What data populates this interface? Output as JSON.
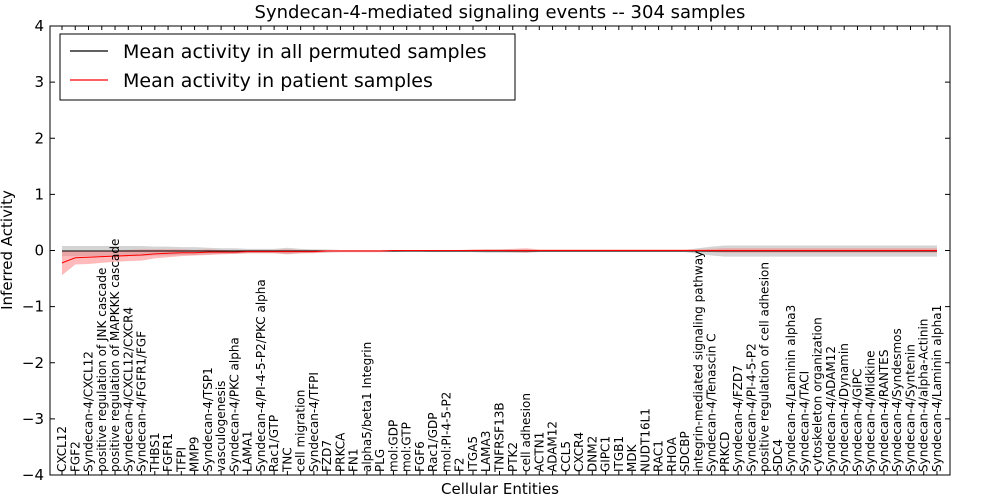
{
  "chart_data": {
    "type": "line",
    "title": "Syndecan-4-mediated signaling events -- 304 samples",
    "xlabel": "Cellular Entities",
    "ylabel": "Inferred Activity",
    "ylim": [
      -4,
      4
    ],
    "yticks": [
      -4,
      -3,
      -2,
      -1,
      0,
      1,
      2,
      3,
      4
    ],
    "ytick_labels": [
      "−4",
      "−3",
      "−2",
      "−1",
      "0",
      "1",
      "2",
      "3",
      "4"
    ],
    "legend_position": "top-left",
    "categories": [
      "CXCL12",
      "FGF2",
      "Syndecan-4/CXCL12",
      "positive regulation of JNK cascade",
      "positive regulation of MAPKKK cascade",
      "Syndecan-4/CXCL12/CXCR4",
      "Syndecan-4/FGFR1/FGF",
      "THBS1",
      "FGFR1",
      "TFPI",
      "MMP9",
      "Syndecan-4/TSP1",
      "vasculogenesis",
      "Syndecan-4/PKC alpha",
      "LAMA1",
      "Syndecan-4/PI-4-5-P2/PKC alpha",
      "Rac1/GTP",
      "TNC",
      "cell migration",
      "Syndecan-4/TFPI",
      "FZD7",
      "PRKCA",
      "FN1",
      "alpha5/beta1 Integrin",
      "PLG",
      "mol:GDP",
      "mol:GTP",
      "FGF6",
      "Rac1/GDP",
      "mol:PI-4-5-P2",
      "F2",
      "ITGA5",
      "LAMA3",
      "TNFRSF13B",
      "PTK2",
      "cell adhesion",
      "ACTN1",
      "ADAM12",
      "CCL5",
      "CXCR4",
      "DNM2",
      "GIPC1",
      "ITGB1",
      "MDK",
      "NUDT16L1",
      "RAC1",
      "RHOA",
      "SDCBP",
      "integrin-mediated signaling pathway",
      "Syndecan-4/Tenascin C",
      "PRKCD",
      "Syndecan-4/FZD7",
      "Syndecan-4/PI-4-5-P2",
      "positive regulation of cell adhesion",
      "SDC4",
      "Syndecan-4/Laminin alpha3",
      "Syndecan-4/TACI",
      "cytoskeleton organization",
      "Syndecan-4/ADAM12",
      "Syndecan-4/Dynamin",
      "Syndecan-4/GIPC",
      "Syndecan-4/Midkine",
      "Syndecan-4/RANTES",
      "Syndecan-4/Syndesmos",
      "Syndecan-4/Syntenin",
      "Syndecan-4/alpha-Actinin",
      "Syndecan-4/Laminin alpha1"
    ],
    "series": [
      {
        "name": "Mean activity in all permuted samples",
        "color": "#000000",
        "band_color": "#aaaaaa",
        "values": [
          -0.01,
          -0.01,
          -0.01,
          -0.01,
          -0.01,
          -0.01,
          -0.01,
          -0.01,
          -0.01,
          -0.01,
          -0.01,
          -0.01,
          -0.01,
          -0.01,
          -0.01,
          -0.01,
          -0.01,
          -0.01,
          -0.01,
          -0.01,
          -0.01,
          -0.01,
          -0.01,
          -0.01,
          -0.01,
          -0.01,
          -0.01,
          -0.01,
          -0.01,
          -0.01,
          -0.01,
          -0.01,
          -0.01,
          -0.01,
          -0.01,
          -0.01,
          -0.01,
          -0.01,
          -0.01,
          -0.01,
          -0.01,
          -0.01,
          -0.01,
          -0.01,
          -0.01,
          -0.01,
          -0.01,
          -0.01,
          -0.01,
          -0.01,
          -0.01,
          -0.01,
          -0.01,
          -0.01,
          -0.01,
          -0.01,
          -0.01,
          -0.01,
          -0.01,
          -0.01,
          -0.01,
          -0.01,
          -0.01,
          -0.01,
          -0.01,
          -0.01,
          -0.01
        ],
        "band_half_width": [
          0.09,
          0.09,
          0.09,
          0.09,
          0.09,
          0.09,
          0.09,
          0.08,
          0.08,
          0.07,
          0.07,
          0.06,
          0.05,
          0.05,
          0.04,
          0.04,
          0.04,
          0.06,
          0.04,
          0.03,
          0.03,
          0.02,
          0.02,
          0.02,
          0.02,
          0.02,
          0.01,
          0.01,
          0.02,
          0.02,
          0.02,
          0.02,
          0.03,
          0.03,
          0.03,
          0.03,
          0.02,
          0.02,
          0.02,
          0.02,
          0.02,
          0.02,
          0.02,
          0.02,
          0.02,
          0.02,
          0.02,
          0.02,
          0.05,
          0.08,
          0.1,
          0.1,
          0.1,
          0.1,
          0.1,
          0.1,
          0.1,
          0.1,
          0.1,
          0.1,
          0.1,
          0.1,
          0.1,
          0.1,
          0.1,
          0.1,
          0.1
        ]
      },
      {
        "name": "Mean activity in patient samples",
        "color": "#ff0000",
        "band_color": "#ff7777",
        "values": [
          -0.22,
          -0.13,
          -0.12,
          -0.11,
          -0.1,
          -0.09,
          -0.08,
          -0.06,
          -0.05,
          -0.04,
          -0.04,
          -0.03,
          -0.03,
          -0.03,
          -0.02,
          -0.02,
          -0.02,
          -0.02,
          -0.02,
          -0.02,
          -0.01,
          -0.01,
          -0.01,
          -0.01,
          -0.01,
          0.0,
          0.0,
          0.0,
          0.0,
          0.0,
          0.0,
          0.0,
          0.0,
          0.0,
          0.0,
          0.0,
          0.0,
          0.0,
          0.0,
          0.0,
          0.0,
          0.0,
          0.0,
          0.0,
          0.0,
          0.0,
          0.0,
          0.0,
          0.0,
          0.0,
          0.0,
          0.0,
          0.0,
          0.0,
          0.0,
          0.0,
          0.0,
          0.0,
          0.0,
          0.0,
          0.0,
          0.0,
          0.0,
          0.0,
          0.0,
          0.0,
          0.0
        ],
        "band_half_width": [
          0.22,
          0.12,
          0.12,
          0.11,
          0.1,
          0.1,
          0.1,
          0.08,
          0.07,
          0.06,
          0.05,
          0.05,
          0.04,
          0.03,
          0.03,
          0.03,
          0.03,
          0.04,
          0.03,
          0.03,
          0.02,
          0.02,
          0.02,
          0.02,
          0.02,
          0.01,
          0.01,
          0.01,
          0.01,
          0.01,
          0.01,
          0.02,
          0.02,
          0.02,
          0.03,
          0.04,
          0.02,
          0.02,
          0.02,
          0.02,
          0.02,
          0.02,
          0.02,
          0.02,
          0.02,
          0.02,
          0.02,
          0.02,
          0.02,
          0.03,
          0.04,
          0.04,
          0.04,
          0.04,
          0.04,
          0.04,
          0.04,
          0.04,
          0.04,
          0.04,
          0.04,
          0.04,
          0.04,
          0.04,
          0.04,
          0.04,
          0.04
        ]
      }
    ]
  }
}
